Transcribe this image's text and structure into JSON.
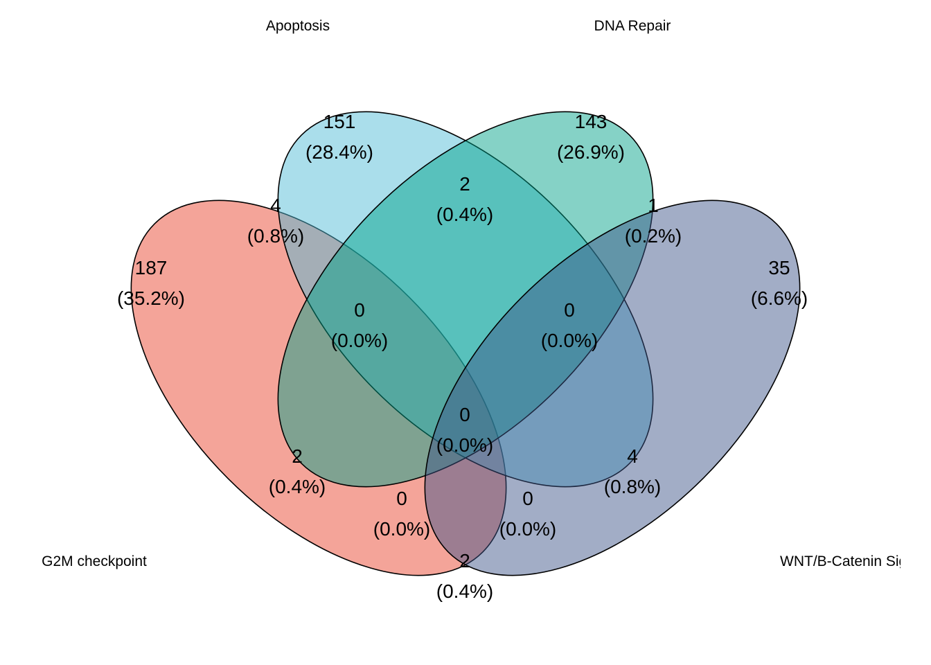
{
  "sets": [
    {
      "id": "g2m",
      "name": "G2M checkpoint",
      "color": "#E7402A"
    },
    {
      "id": "apoptosis",
      "name": "Apoptosis",
      "color": "#4DBBD5"
    },
    {
      "id": "dna",
      "name": "DNA Repair",
      "color": "#00A087"
    },
    {
      "id": "wnt",
      "name": "WNT/B-Catenin Signaling",
      "color": "#3C5488"
    }
  ],
  "regions": [
    {
      "id": "g2m-only",
      "count": "187",
      "percent": "(35.2%)"
    },
    {
      "id": "apoptosis-only",
      "count": "151",
      "percent": "(28.4%)"
    },
    {
      "id": "dna-only",
      "count": "143",
      "percent": "(26.9%)"
    },
    {
      "id": "wnt-only",
      "count": "35",
      "percent": "(6.6%)"
    },
    {
      "id": "g2m-apoptosis",
      "count": "4",
      "percent": "(0.8%)"
    },
    {
      "id": "apoptosis-dna",
      "count": "2",
      "percent": "(0.4%)"
    },
    {
      "id": "dna-wnt",
      "count": "1",
      "percent": "(0.2%)"
    },
    {
      "id": "g2m-apoptosis-dna",
      "count": "0",
      "percent": "(0.0%)"
    },
    {
      "id": "apoptosis-dna-wnt",
      "count": "0",
      "percent": "(0.0%)"
    },
    {
      "id": "all-four",
      "count": "0",
      "percent": "(0.0%)"
    },
    {
      "id": "g2m-dna",
      "count": "2",
      "percent": "(0.4%)"
    },
    {
      "id": "apoptosis-wnt",
      "count": "4",
      "percent": "(0.8%)"
    },
    {
      "id": "g2m-dna-wnt",
      "count": "0",
      "percent": "(0.0%)"
    },
    {
      "id": "g2m-apoptosis-wnt",
      "count": "0",
      "percent": "(0.0%)"
    },
    {
      "id": "g2m-wnt",
      "count": "2",
      "percent": "(0.4%)"
    }
  ]
}
